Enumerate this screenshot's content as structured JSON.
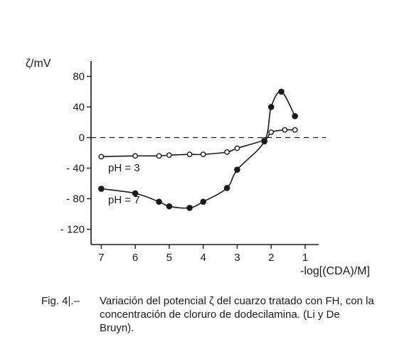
{
  "chart_data": {
    "type": "line",
    "xlabel": "-log[(CDA)/M]",
    "ylabel": "ζ/mV",
    "xlim": [
      7.3,
      0.6
    ],
    "ylim": [
      -140,
      100
    ],
    "x_ticks": [
      7,
      6,
      5,
      4,
      3,
      2,
      1
    ],
    "y_ticks": [
      80,
      40,
      0,
      -40,
      -80,
      -120
    ],
    "y_tick_labels": [
      "80",
      "40",
      "0",
      "- 40",
      "- 80",
      "- 120"
    ],
    "zero_line": "dashed",
    "grid": false,
    "series": [
      {
        "name": "pH = 3",
        "marker": "open-circle",
        "x": [
          7.0,
          6.0,
          5.3,
          5.0,
          4.4,
          4.0,
          3.3,
          3.0,
          2.2,
          2.0,
          1.6,
          1.3
        ],
        "y": [
          -25,
          -24,
          -24,
          -23,
          -22,
          -22,
          -19,
          -14,
          -3,
          7,
          10,
          10
        ]
      },
      {
        "name": "pH = 7",
        "marker": "filled-circle",
        "x": [
          7.0,
          6.0,
          5.3,
          5.0,
          4.4,
          4.0,
          3.3,
          3.0,
          2.2,
          2.0,
          1.7,
          1.3
        ],
        "y": [
          -67,
          -73,
          -84,
          -90,
          -92,
          -84,
          -66,
          -42,
          -5,
          40,
          60,
          28
        ]
      }
    ]
  },
  "caption": {
    "number": "Fig. 4|.–",
    "text": "Variación del potencial ζ del cuarzo tratado con FH, con la concentración de cloruro de dodecilamina. (Li y De Bruyn)."
  }
}
